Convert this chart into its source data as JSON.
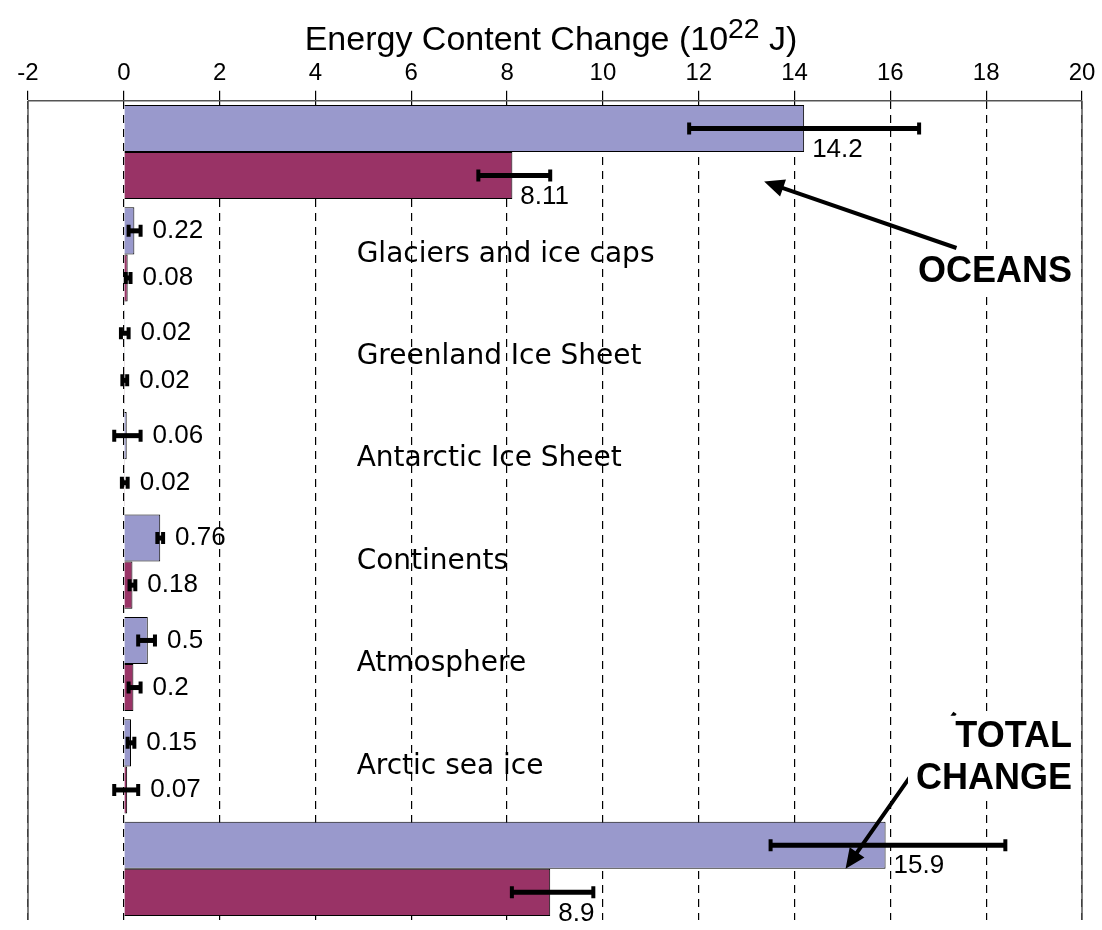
{
  "chart_data": {
    "type": "bar",
    "orientation": "horizontal",
    "xlabel": "Energy Content Change (10$^{22}$ J)",
    "categories": [
      null,
      "Glaciers and ice caps",
      "Greenland Ice Sheet",
      "Antarctic Ice Sheet",
      "Continents",
      "Atmosphere",
      "Arctic sea ice",
      null
    ],
    "annotations": [
      "OCEANS",
      "TOTAL CHANGE"
    ],
    "series": [
      {
        "color": "#9999cc",
        "values": [
          14.2,
          0.22,
          0.02,
          0.06,
          0.76,
          0.5,
          0.15,
          15.9
        ],
        "errors": [
          [
            11.8,
            16.6
          ],
          [
            0.1,
            0.35
          ],
          [
            -0.06,
            0.1
          ],
          [
            -0.2,
            0.35
          ],
          [
            0.7,
            0.82
          ],
          [
            0.3,
            0.65
          ],
          [
            0.08,
            0.22
          ],
          [
            13.5,
            18.4
          ]
        ]
      },
      {
        "color": "#993366",
        "values": [
          8.11,
          0.08,
          0.02,
          0.02,
          0.18,
          0.2,
          0.07,
          8.9
        ],
        "errors": [
          [
            7.4,
            8.9
          ],
          [
            0.04,
            0.14
          ],
          [
            -0.03,
            0.07
          ],
          [
            -0.04,
            0.08
          ],
          [
            0.12,
            0.24
          ],
          [
            0.1,
            0.35
          ],
          [
            -0.2,
            0.3
          ],
          [
            8.1,
            9.8
          ]
        ]
      }
    ],
    "xlim": [
      -2,
      20
    ],
    "xticks": [
      -2,
      0,
      2,
      4,
      6,
      8,
      10,
      12,
      14,
      16,
      18,
      20
    ],
    "grid": "x",
    "legend": false,
    "tick_labels": "x",
    "data_labels": true
  }
}
